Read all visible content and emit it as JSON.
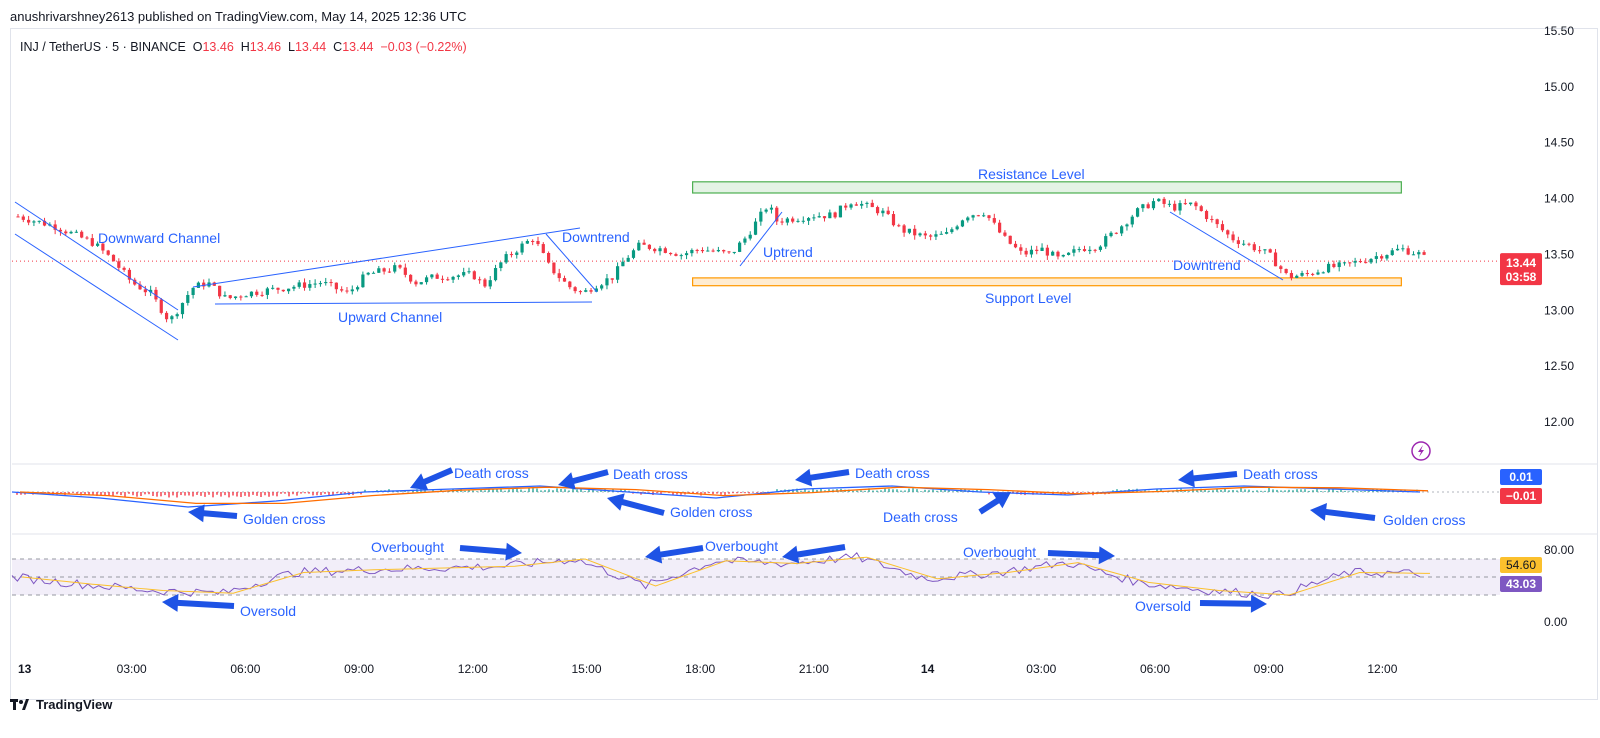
{
  "publish_line": "anushrivarshney2613 published on TradingView.com, May 14, 2025 12:36 UTC",
  "symbol": {
    "name": "INJ / TetherUS · 5 · BINANCE",
    "o_label": "O",
    "o": "13.46",
    "h_label": "H",
    "h": "13.46",
    "l_label": "L",
    "l": "13.44",
    "c_label": "C",
    "c": "13.44",
    "change": "−0.03 (−0.22%)"
  },
  "price_tag": {
    "value": "13.44",
    "countdown": "03:58"
  },
  "macd_tags": {
    "upper": "0.01",
    "lower": "−0.01"
  },
  "rsi_tags": {
    "upper": "54.60",
    "lower": "43.03"
  },
  "footer": "TradingView",
  "colors": {
    "up": "#089981",
    "down": "#f23645",
    "annotation": "#2962ff",
    "resistance": "#4caf50",
    "support": "#ff9800",
    "rsi": "#7e57c2",
    "rsi_ma": "#fbc02d"
  },
  "annotations": {
    "downward_channel": "Downward Channel",
    "upward_channel": "Upward Channel",
    "downtrend_1": "Downtrend",
    "uptrend": "Uptrend",
    "resistance": "Resistance Level",
    "support": "Support Level",
    "downtrend_2": "Downtrend",
    "macd": [
      {
        "text": "Golden cross"
      },
      {
        "text": "Death cross"
      },
      {
        "text": "Death cross"
      },
      {
        "text": "Golden cross"
      },
      {
        "text": "Death cross"
      },
      {
        "text": "Death cross"
      },
      {
        "text": "Death cross"
      },
      {
        "text": "Golden cross"
      }
    ],
    "rsi": [
      {
        "text": "Overbought"
      },
      {
        "text": "Oversold"
      },
      {
        "text": "Overbought"
      },
      {
        "text": "Overbought"
      },
      {
        "text": "Oversold"
      }
    ]
  },
  "chart_data": [
    {
      "type": "candlestick",
      "panel": "price",
      "ylim": [
        11.7,
        15.5
      ],
      "y_ticks": [
        "15.50",
        "15.00",
        "14.50",
        "14.00",
        "13.50",
        "13.00",
        "12.50",
        "12.00"
      ],
      "x_ticks": [
        "13",
        "03:00",
        "06:00",
        "09:00",
        "12:00",
        "15:00",
        "18:00",
        "21:00",
        "14",
        "03:00",
        "06:00",
        "09:00",
        "12:00"
      ],
      "close_path": [
        [
          0.0,
          13.84
        ],
        [
          1.0,
          13.75
        ],
        [
          2.0,
          13.6
        ],
        [
          2.5,
          13.45
        ],
        [
          3.0,
          13.25
        ],
        [
          3.5,
          13.15
        ],
        [
          4.0,
          12.9
        ],
        [
          4.3,
          13.05
        ],
        [
          4.6,
          13.2
        ],
        [
          5.0,
          13.25
        ],
        [
          5.5,
          13.1
        ],
        [
          6.0,
          13.15
        ],
        [
          7.0,
          13.2
        ],
        [
          8.0,
          13.25
        ],
        [
          8.7,
          13.15
        ],
        [
          9.2,
          13.32
        ],
        [
          10.0,
          13.38
        ],
        [
          10.5,
          13.25
        ],
        [
          11.0,
          13.3
        ],
        [
          12.0,
          13.32
        ],
        [
          12.3,
          13.22
        ],
        [
          12.8,
          13.45
        ],
        [
          13.3,
          13.58
        ],
        [
          13.6,
          13.65
        ],
        [
          14.0,
          13.4
        ],
        [
          14.5,
          13.22
        ],
        [
          14.9,
          13.15
        ],
        [
          15.2,
          13.22
        ],
        [
          15.7,
          13.3
        ],
        [
          16.0,
          13.45
        ],
        [
          16.4,
          13.58
        ],
        [
          17.0,
          13.55
        ],
        [
          17.5,
          13.5
        ],
        [
          18.0,
          13.55
        ],
        [
          18.8,
          13.5
        ],
        [
          19.2,
          13.65
        ],
        [
          19.8,
          13.95
        ],
        [
          20.0,
          13.8
        ],
        [
          21.0,
          13.85
        ],
        [
          21.5,
          13.85
        ],
        [
          22.0,
          13.98
        ],
        [
          22.8,
          13.88
        ],
        [
          23.3,
          13.72
        ],
        [
          24.0,
          13.65
        ],
        [
          24.5,
          13.68
        ],
        [
          25.0,
          13.85
        ],
        [
          25.5,
          13.88
        ],
        [
          26.0,
          13.65
        ],
        [
          26.5,
          13.5
        ],
        [
          27.0,
          13.55
        ],
        [
          27.5,
          13.45
        ],
        [
          28.0,
          13.55
        ],
        [
          28.5,
          13.58
        ],
        [
          29.0,
          13.72
        ],
        [
          29.5,
          13.88
        ],
        [
          30.0,
          13.98
        ],
        [
          30.5,
          13.92
        ],
        [
          31.0,
          13.95
        ],
        [
          31.5,
          13.8
        ],
        [
          32.0,
          13.65
        ],
        [
          32.5,
          13.58
        ],
        [
          33.0,
          13.5
        ],
        [
          33.5,
          13.3
        ],
        [
          34.0,
          13.32
        ],
        [
          34.5,
          13.38
        ],
        [
          35.0,
          13.4
        ],
        [
          35.5,
          13.45
        ],
        [
          36.0,
          13.5
        ],
        [
          36.5,
          13.55
        ],
        [
          37.0,
          13.5
        ],
        [
          37.2,
          13.44
        ]
      ],
      "lines": {
        "resistance_zone": [
          14.05,
          14.15
        ],
        "support_zone": [
          13.22,
          13.29
        ],
        "current_price": 13.44
      }
    },
    {
      "type": "line",
      "panel": "macd",
      "series": [
        {
          "values": [
            0,
            -0.02,
            -0.05,
            -0.03,
            0.0,
            0.01,
            0.02,
            0.0,
            -0.02,
            0.01,
            0.02,
            0.0,
            -0.01,
            0.01,
            0.02,
            0.01,
            0.0
          ]
        }
      ]
    },
    {
      "type": "line",
      "panel": "rsi",
      "y_ticks": [
        "80.00",
        "0.00"
      ],
      "overbought": 70,
      "oversold": 30,
      "series": [
        {
          "values": [
            50,
            42,
            35,
            32,
            55,
            58,
            60,
            62,
            70,
            40,
            68,
            65,
            72,
            48,
            55,
            66,
            44,
            35,
            30,
            55,
            54
          ]
        }
      ]
    }
  ]
}
